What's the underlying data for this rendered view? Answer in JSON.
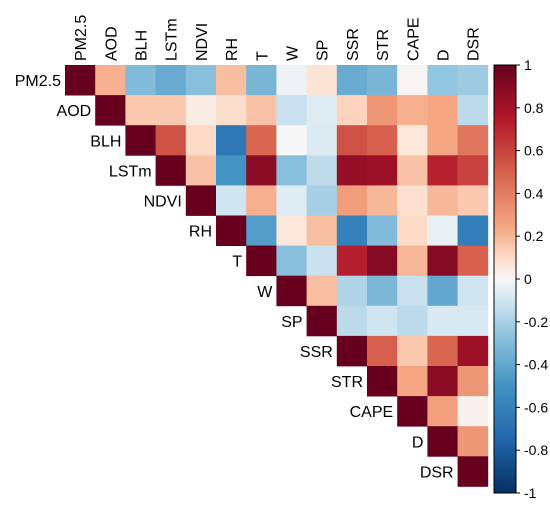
{
  "chart_data": {
    "type": "heatmap",
    "title": "",
    "variables": [
      "PM2.5",
      "AOD",
      "BLH",
      "LSTm",
      "NDVI",
      "RH",
      "T",
      "W",
      "SP",
      "SSR",
      "STR",
      "CAPE",
      "D",
      "DSR"
    ],
    "matrix_upper": [
      [
        1,
        0.22,
        -0.3,
        -0.38,
        -0.28,
        0.18,
        -0.33,
        -0.03,
        0.07,
        -0.38,
        -0.33,
        0.01,
        -0.25,
        -0.22
      ],
      [
        null,
        1,
        0.15,
        0.15,
        0.04,
        0.09,
        0.17,
        -0.12,
        -0.06,
        0.12,
        0.3,
        0.22,
        0.25,
        -0.15
      ],
      [
        null,
        null,
        1,
        0.55,
        0.1,
        -0.65,
        0.48,
        0.0,
        -0.07,
        0.55,
        0.5,
        0.06,
        0.25,
        0.42
      ],
      [
        null,
        null,
        null,
        1,
        0.17,
        -0.5,
        0.88,
        -0.28,
        -0.14,
        0.85,
        0.82,
        0.17,
        0.72,
        0.6
      ],
      [
        null,
        null,
        null,
        null,
        1,
        -0.1,
        0.22,
        -0.06,
        -0.2,
        0.28,
        0.2,
        0.08,
        0.2,
        0.15
      ],
      [
        null,
        null,
        null,
        null,
        null,
        1,
        -0.45,
        0.06,
        0.18,
        -0.6,
        -0.3,
        0.1,
        -0.04,
        -0.62
      ],
      [
        null,
        null,
        null,
        null,
        null,
        null,
        1,
        -0.28,
        -0.12,
        0.73,
        0.9,
        0.2,
        0.9,
        0.5
      ],
      [
        null,
        null,
        null,
        null,
        null,
        null,
        null,
        1,
        0.18,
        -0.18,
        -0.32,
        -0.12,
        -0.4,
        -0.1
      ],
      [
        null,
        null,
        null,
        null,
        null,
        null,
        null,
        null,
        1,
        -0.15,
        -0.1,
        -0.15,
        -0.08,
        -0.08
      ],
      [
        null,
        null,
        null,
        null,
        null,
        null,
        null,
        null,
        null,
        1,
        0.5,
        0.15,
        0.48,
        0.82
      ],
      [
        null,
        null,
        null,
        null,
        null,
        null,
        null,
        null,
        null,
        null,
        1,
        0.25,
        0.88,
        0.3
      ],
      [
        null,
        null,
        null,
        null,
        null,
        null,
        null,
        null,
        null,
        null,
        null,
        1,
        0.27,
        0.02
      ],
      [
        null,
        null,
        null,
        null,
        null,
        null,
        null,
        null,
        null,
        null,
        null,
        null,
        1,
        0.3
      ],
      [
        null,
        null,
        null,
        null,
        null,
        null,
        null,
        null,
        null,
        null,
        null,
        null,
        null,
        1
      ]
    ],
    "colorbar": {
      "range": [
        -1,
        1
      ],
      "ticks": [
        1,
        0.8,
        0.6,
        0.4,
        0.2,
        0,
        -0.2,
        -0.4,
        -0.6,
        -0.8,
        -1
      ],
      "tick_labels": [
        "1",
        "0.8",
        "0.6",
        "0.4",
        "0.2",
        "0",
        "-0.2",
        "-0.4",
        "-0.6",
        "-0.8",
        "-1"
      ]
    },
    "colormap": {
      "stops": [
        {
          "v": -1,
          "color": "#053061"
        },
        {
          "v": -0.75,
          "color": "#2166ac"
        },
        {
          "v": -0.5,
          "color": "#4393c3"
        },
        {
          "v": -0.25,
          "color": "#92c5de"
        },
        {
          "v": -0.1,
          "color": "#d1e5f0"
        },
        {
          "v": 0,
          "color": "#f7f7f7"
        },
        {
          "v": 0.1,
          "color": "#fddbc7"
        },
        {
          "v": 0.25,
          "color": "#f4a582"
        },
        {
          "v": 0.5,
          "color": "#d6604d"
        },
        {
          "v": 0.75,
          "color": "#b2182b"
        },
        {
          "v": 1,
          "color": "#67001f"
        }
      ]
    },
    "legend_position": "right",
    "grid": false
  }
}
